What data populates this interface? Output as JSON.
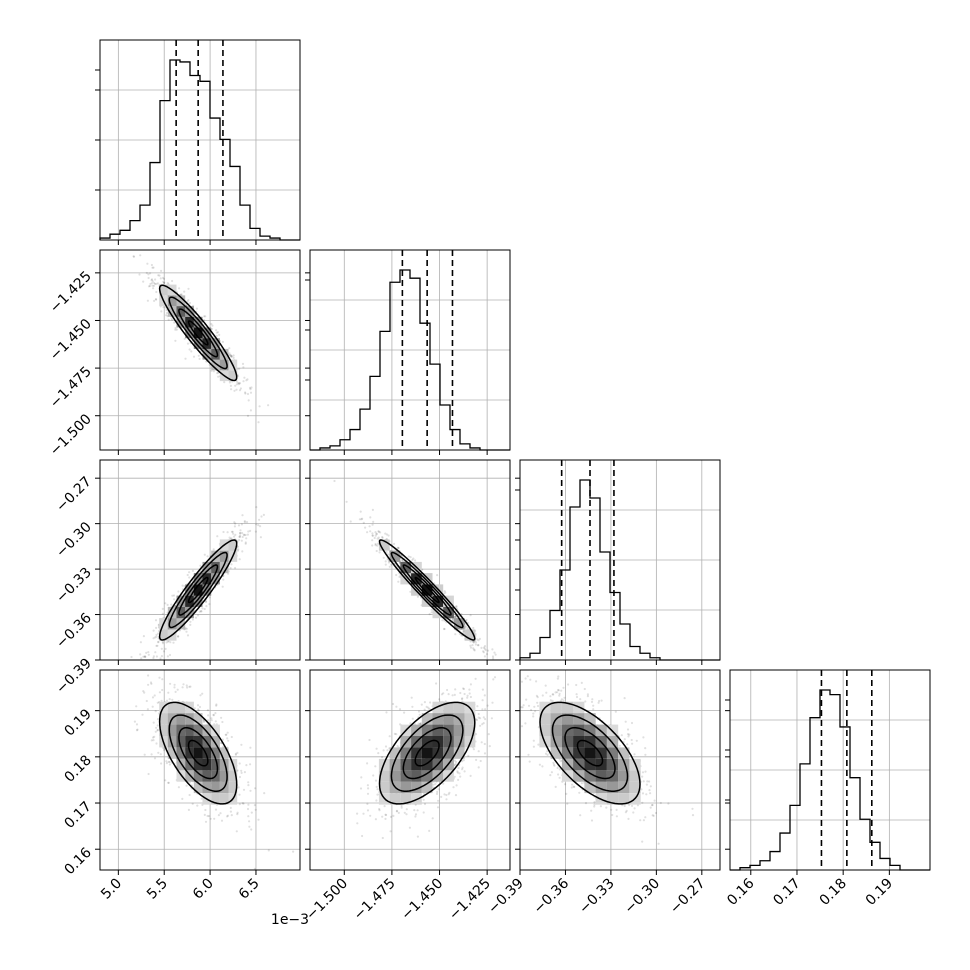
{
  "chart_data": {
    "type": "corner",
    "n_params": 4,
    "grid": true,
    "params": [
      {
        "range": [
          4.8,
          6.98
        ],
        "ticks": [
          5.0,
          5.5,
          6.0,
          6.5
        ],
        "tick_labels": [
          "5.0",
          "5.5",
          "6.0",
          "6.5"
        ],
        "offset_label": "1e−3",
        "median": 5.87,
        "quantiles": [
          5.63,
          5.87,
          6.14
        ],
        "sd": 0.21
      },
      {
        "range": [
          -1.518,
          -1.413
        ],
        "ticks": [
          -1.5,
          -1.475,
          -1.45,
          -1.425
        ],
        "tick_labels": [
          "−1.500",
          "−1.475",
          "−1.450",
          "−1.425"
        ],
        "median": -1.4565,
        "quantiles": [
          -1.4695,
          -1.4565,
          -1.4432
        ],
        "sd": 0.0125
      },
      {
        "range": [
          -0.39,
          -0.258
        ],
        "ticks": [
          -0.39,
          -0.36,
          -0.33,
          -0.3,
          -0.27
        ],
        "tick_labels": [
          "−0.39",
          "−0.36",
          "−0.33",
          "−0.30",
          "−0.27"
        ],
        "median": -0.3438,
        "quantiles": [
          -0.3625,
          -0.3438,
          -0.328
        ],
        "sd": 0.0165
      },
      {
        "range": [
          0.1555,
          0.1988
        ],
        "ticks": [
          0.16,
          0.17,
          0.18,
          0.19
        ],
        "tick_labels": [
          "0.16",
          "0.17",
          "0.18",
          "0.19"
        ],
        "median": 0.1808,
        "quantiles": [
          0.1753,
          0.1808,
          0.1862
        ],
        "sd": 0.0055
      }
    ],
    "correlations": {
      "1-0": -0.93,
      "2-0": 0.93,
      "2-1": -0.97,
      "3-0": -0.62,
      "3-1": 0.6,
      "3-2": -0.61
    },
    "histograms": [
      [
        1,
        3,
        5,
        10,
        18,
        40,
        72,
        93,
        92,
        85,
        82,
        63,
        52,
        38,
        18,
        6,
        2,
        1,
        0,
        0
      ],
      [
        0,
        1,
        2,
        5,
        10,
        20,
        36,
        58,
        82,
        88,
        84,
        62,
        42,
        22,
        10,
        3,
        1,
        0,
        0,
        0
      ],
      [
        1,
        3,
        10,
        22,
        40,
        68,
        80,
        72,
        48,
        30,
        16,
        6,
        3,
        1,
        0,
        0,
        0,
        0,
        0,
        0
      ],
      [
        0,
        1,
        2,
        4,
        8,
        16,
        28,
        46,
        66,
        78,
        76,
        62,
        40,
        22,
        12,
        5,
        2,
        0,
        0,
        0
      ]
    ]
  }
}
